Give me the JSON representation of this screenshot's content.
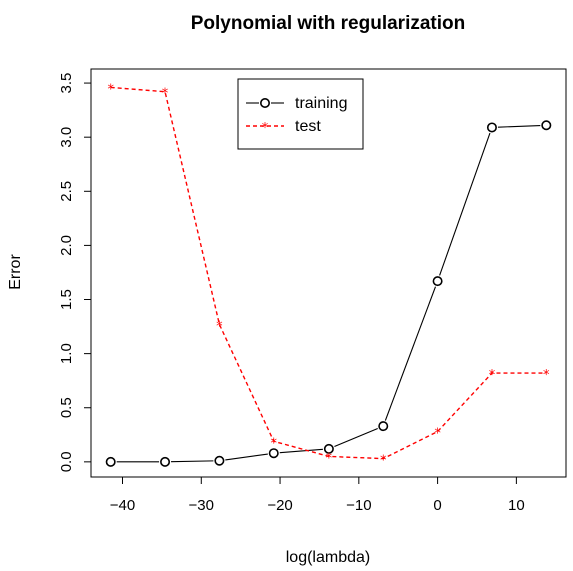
{
  "chart_data": {
    "type": "line",
    "title": "Polynomial with regularization",
    "xlabel": "log(lambda)",
    "ylabel": "Error",
    "x": [
      -41.5,
      -34.6,
      -27.7,
      -20.8,
      -13.8,
      -6.9,
      0,
      6.9,
      13.8
    ],
    "xlim": [
      -44.0,
      16.3
    ],
    "ylim": [
      -0.14,
      3.63
    ],
    "xticks": [
      -40,
      -30,
      -20,
      -10,
      0,
      10
    ],
    "xtick_labels": [
      "−40",
      "−30",
      "−20",
      "−10",
      "0",
      "10"
    ],
    "yticks": [
      0.0,
      0.5,
      1.0,
      1.5,
      2.0,
      2.5,
      3.0,
      3.5
    ],
    "ytick_labels": [
      "0.0",
      "0.5",
      "1.0",
      "1.5",
      "2.0",
      "2.5",
      "3.0",
      "3.5"
    ],
    "grid": false,
    "legend_position": "top-center",
    "series": [
      {
        "name": "training",
        "color": "#000000",
        "line": "solid",
        "marker": "circle",
        "values": [
          0.0,
          0.0,
          0.01,
          0.08,
          0.12,
          0.33,
          1.67,
          3.09,
          3.11
        ]
      },
      {
        "name": "test",
        "color": "#ff0000",
        "line": "dashed",
        "marker": "star",
        "values": [
          3.46,
          3.42,
          1.27,
          0.19,
          0.05,
          0.03,
          0.28,
          0.82,
          0.82
        ]
      }
    ]
  }
}
